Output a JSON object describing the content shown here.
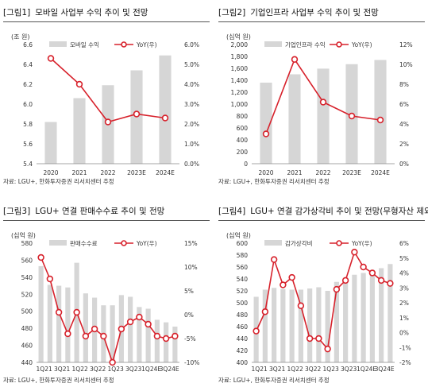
{
  "chart_data": [
    {
      "type": "bar",
      "number": "[그림1]",
      "title": "모바일 사업부 수익 추이 및 전망",
      "unit": "(조 원)",
      "source": "자료: LGU+, 한화투자증권 리서치센터 추정",
      "bar_name": "모바일 수익",
      "line_name": "YoY(우)",
      "categories": [
        "2020",
        "2021",
        "2022",
        "2023E",
        "2024E"
      ],
      "bar_values": [
        5.82,
        6.06,
        6.19,
        6.34,
        6.49
      ],
      "line_values": [
        5.3,
        4.0,
        2.1,
        2.5,
        2.3
      ],
      "left_ticks": [
        "5.4",
        "5.6",
        "5.8",
        "6.0",
        "6.2",
        "6.4",
        "6.6"
      ],
      "right_ticks": [
        "0.0%",
        "1.0%",
        "2.0%",
        "3.0%",
        "4.0%",
        "5.0%",
        "6.0%"
      ],
      "left_range": [
        5.4,
        6.6
      ],
      "right_range": [
        0,
        6
      ]
    },
    {
      "type": "bar",
      "number": "[그림2]",
      "title": "기업인프라 사업부 수익 추이 및 전망",
      "unit": "(십억 원)",
      "source": "자료: LGU+, 한화투자증권 리서치센터 추정",
      "bar_name": "기업인프라 수익",
      "line_name": "YoY(우)",
      "categories": [
        "2020",
        "2021",
        "2022",
        "2023E",
        "2024E"
      ],
      "bar_values": [
        1360,
        1500,
        1595,
        1670,
        1740
      ],
      "line_values": [
        3.0,
        10.5,
        6.2,
        4.8,
        4.4
      ],
      "left_ticks": [
        "0",
        "200",
        "400",
        "600",
        "800",
        "1,000",
        "1,200",
        "1,400",
        "1,600",
        "1,800",
        "2,000"
      ],
      "right_ticks": [
        "0%",
        "2%",
        "4%",
        "6%",
        "8%",
        "10%",
        "12%"
      ],
      "left_range": [
        0,
        2000
      ],
      "right_range": [
        0,
        12
      ]
    },
    {
      "type": "bar",
      "number": "[그림3]",
      "title": "LGU+ 연결 판매수수료 추이 및 전망",
      "unit": "(십억 원)",
      "source": "자료: LGU+, 한화투자증권 리서치센터 추정",
      "bar_name": "판매수수료",
      "line_name": "YoY(우)",
      "categories": [
        "1Q21",
        "2Q21",
        "3Q21",
        "4Q21",
        "1Q22",
        "2Q22",
        "3Q22",
        "4Q22",
        "1Q23",
        "2Q23",
        "3Q23",
        "4Q23",
        "1Q24E",
        "2Q24E",
        "3Q24E",
        "4Q24E"
      ],
      "x_tick_labels": [
        "1Q21",
        "3Q21",
        "1Q22",
        "3Q22",
        "1Q23",
        "3Q23",
        "1Q24E",
        "3Q24E"
      ],
      "bar_values": [
        553,
        531,
        530,
        528,
        557,
        521,
        516,
        507,
        507,
        519,
        517,
        505,
        503,
        490,
        487,
        482
      ],
      "line_values": [
        12.0,
        7.5,
        0.5,
        -4.0,
        0.5,
        -4.5,
        -3.0,
        -4.5,
        -10.0,
        -3.0,
        -1.5,
        -0.5,
        -2.0,
        -4.5,
        -5.0,
        -4.5
      ],
      "left_ticks": [
        "440",
        "460",
        "480",
        "500",
        "520",
        "540",
        "560",
        "580"
      ],
      "right_ticks": [
        "-10%",
        "-5%",
        "0%",
        "5%",
        "10%",
        "15%"
      ],
      "left_range": [
        440,
        580
      ],
      "right_range": [
        -10,
        15
      ]
    },
    {
      "type": "bar",
      "number": "[그림4]",
      "title": "LGU+ 연결 감가상각비 추이 및 전망(무형자산 제외)",
      "unit": "(십억 원)",
      "source": "자료: LGU+, 한화투자증권 리서치센터 추정",
      "bar_name": "감가상각비",
      "line_name": "YoY(우)",
      "categories": [
        "1Q21",
        "2Q21",
        "3Q21",
        "4Q21",
        "1Q22",
        "2Q22",
        "3Q22",
        "4Q22",
        "1Q23",
        "2Q23",
        "3Q23",
        "4Q23",
        "1Q24E",
        "2Q24E",
        "3Q24E",
        "4Q24E"
      ],
      "x_tick_labels": [
        "1Q21",
        "3Q21",
        "1Q22",
        "3Q22",
        "1Q23",
        "3Q23",
        "1Q24E",
        "3Q24E"
      ],
      "bar_values": [
        510,
        522,
        525,
        523,
        522,
        522,
        524,
        526,
        520,
        535,
        538,
        547,
        550,
        555,
        558,
        565
      ],
      "line_values": [
        0.1,
        1.4,
        4.9,
        3.2,
        3.7,
        1.8,
        -0.4,
        -0.4,
        -1.1,
        2.9,
        3.5,
        5.4,
        4.4,
        4.0,
        3.5,
        3.3
      ],
      "left_ticks": [
        "400",
        "420",
        "440",
        "460",
        "480",
        "500",
        "520",
        "540",
        "560",
        "580",
        "600"
      ],
      "right_ticks": [
        "-2%",
        "-1%",
        "0%",
        "1%",
        "2%",
        "3%",
        "4%",
        "5%",
        "6%"
      ],
      "left_range": [
        400,
        600
      ],
      "right_range": [
        -2,
        6
      ]
    }
  ],
  "colors": {
    "bar": "#d6d6d6",
    "line": "#d7212b",
    "axis_text": "#333333"
  }
}
